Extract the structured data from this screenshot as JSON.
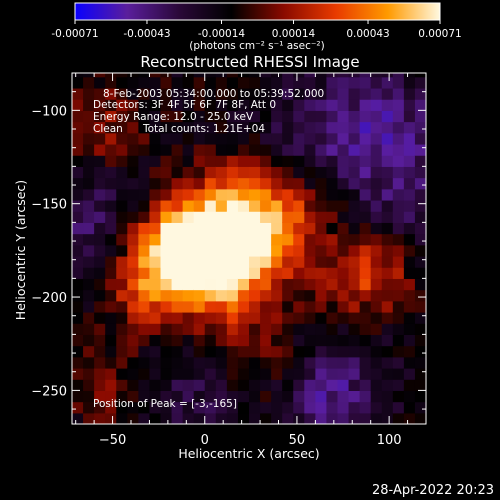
{
  "chart_data": {
    "type": "heatmap",
    "title": "Reconstructed RHESSI Image",
    "xlabel": "Heliocentric X (arcsec)",
    "ylabel": "Heliocentric Y (arcsec)",
    "xlim": [
      -72,
      120
    ],
    "ylim": [
      -268,
      -80
    ],
    "x_ticks": [
      -50,
      0,
      50,
      100
    ],
    "y_ticks": [
      -100,
      -150,
      -200,
      -250
    ],
    "colorbar": {
      "min": -0.00071,
      "max": 0.00071,
      "ticks": [
        "-0.00071",
        "-0.00043",
        "-0.00014",
        "0.00014",
        "0.00043",
        "0.00071"
      ],
      "unit_label": "(photons cm⁻² s⁻¹ asec⁻²)",
      "colors": [
        "#0a00ff",
        "#5a1e9c",
        "#2a0838",
        "#000000",
        "#8a0a00",
        "#e83a00",
        "#ff9a00",
        "#fff8e0"
      ]
    },
    "annotations": {
      "time_range": "8-Feb-2003 05:34:00.000 to 05:39:52.000",
      "detectors": "Detectors: 3F 4F 5F 6F 7F 8F, Att 0",
      "energy_range": "Energy Range: 12.0 - 25.0 keV",
      "method": "Clean",
      "total_counts": "Total counts: 1.21E+04",
      "peak": "Position of Peak = [-3,-165]"
    },
    "peak_position": [
      -3,
      -165
    ],
    "sources": [
      {
        "x": 3,
        "y": -172,
        "intensity": 0.00071
      },
      {
        "x": -18,
        "y": -170,
        "intensity": 0.00058
      },
      {
        "x": 28,
        "y": -172,
        "intensity": 0.00052
      },
      {
        "x": -30,
        "y": -193,
        "intensity": 0.00045
      },
      {
        "x": 10,
        "y": -200,
        "intensity": 0.0004
      },
      {
        "x": 90,
        "y": -185,
        "intensity": 0.00043
      },
      {
        "x": 18,
        "y": -145,
        "intensity": 0.00036
      },
      {
        "x": 45,
        "y": -155,
        "intensity": 0.0003
      },
      {
        "x": -55,
        "y": -110,
        "intensity": 0.00022
      },
      {
        "x": -52,
        "y": -248,
        "intensity": 0.00018
      },
      {
        "x": 35,
        "y": -238,
        "intensity": 0.0002
      },
      {
        "x": 60,
        "y": -205,
        "intensity": 0.00012
      }
    ],
    "negative_regions": [
      {
        "x": 65,
        "y": -250,
        "intensity": -0.00035
      },
      {
        "x": 100,
        "y": -110,
        "intensity": -0.0003
      },
      {
        "x": 60,
        "y": -110,
        "intensity": -0.00022
      },
      {
        "x": -60,
        "y": -160,
        "intensity": -0.00025
      },
      {
        "x": 110,
        "y": -155,
        "intensity": -0.0002
      },
      {
        "x": -10,
        "y": -255,
        "intensity": -0.00018
      }
    ]
  },
  "footer": {
    "date": "28-Apr-2022 20:23"
  }
}
